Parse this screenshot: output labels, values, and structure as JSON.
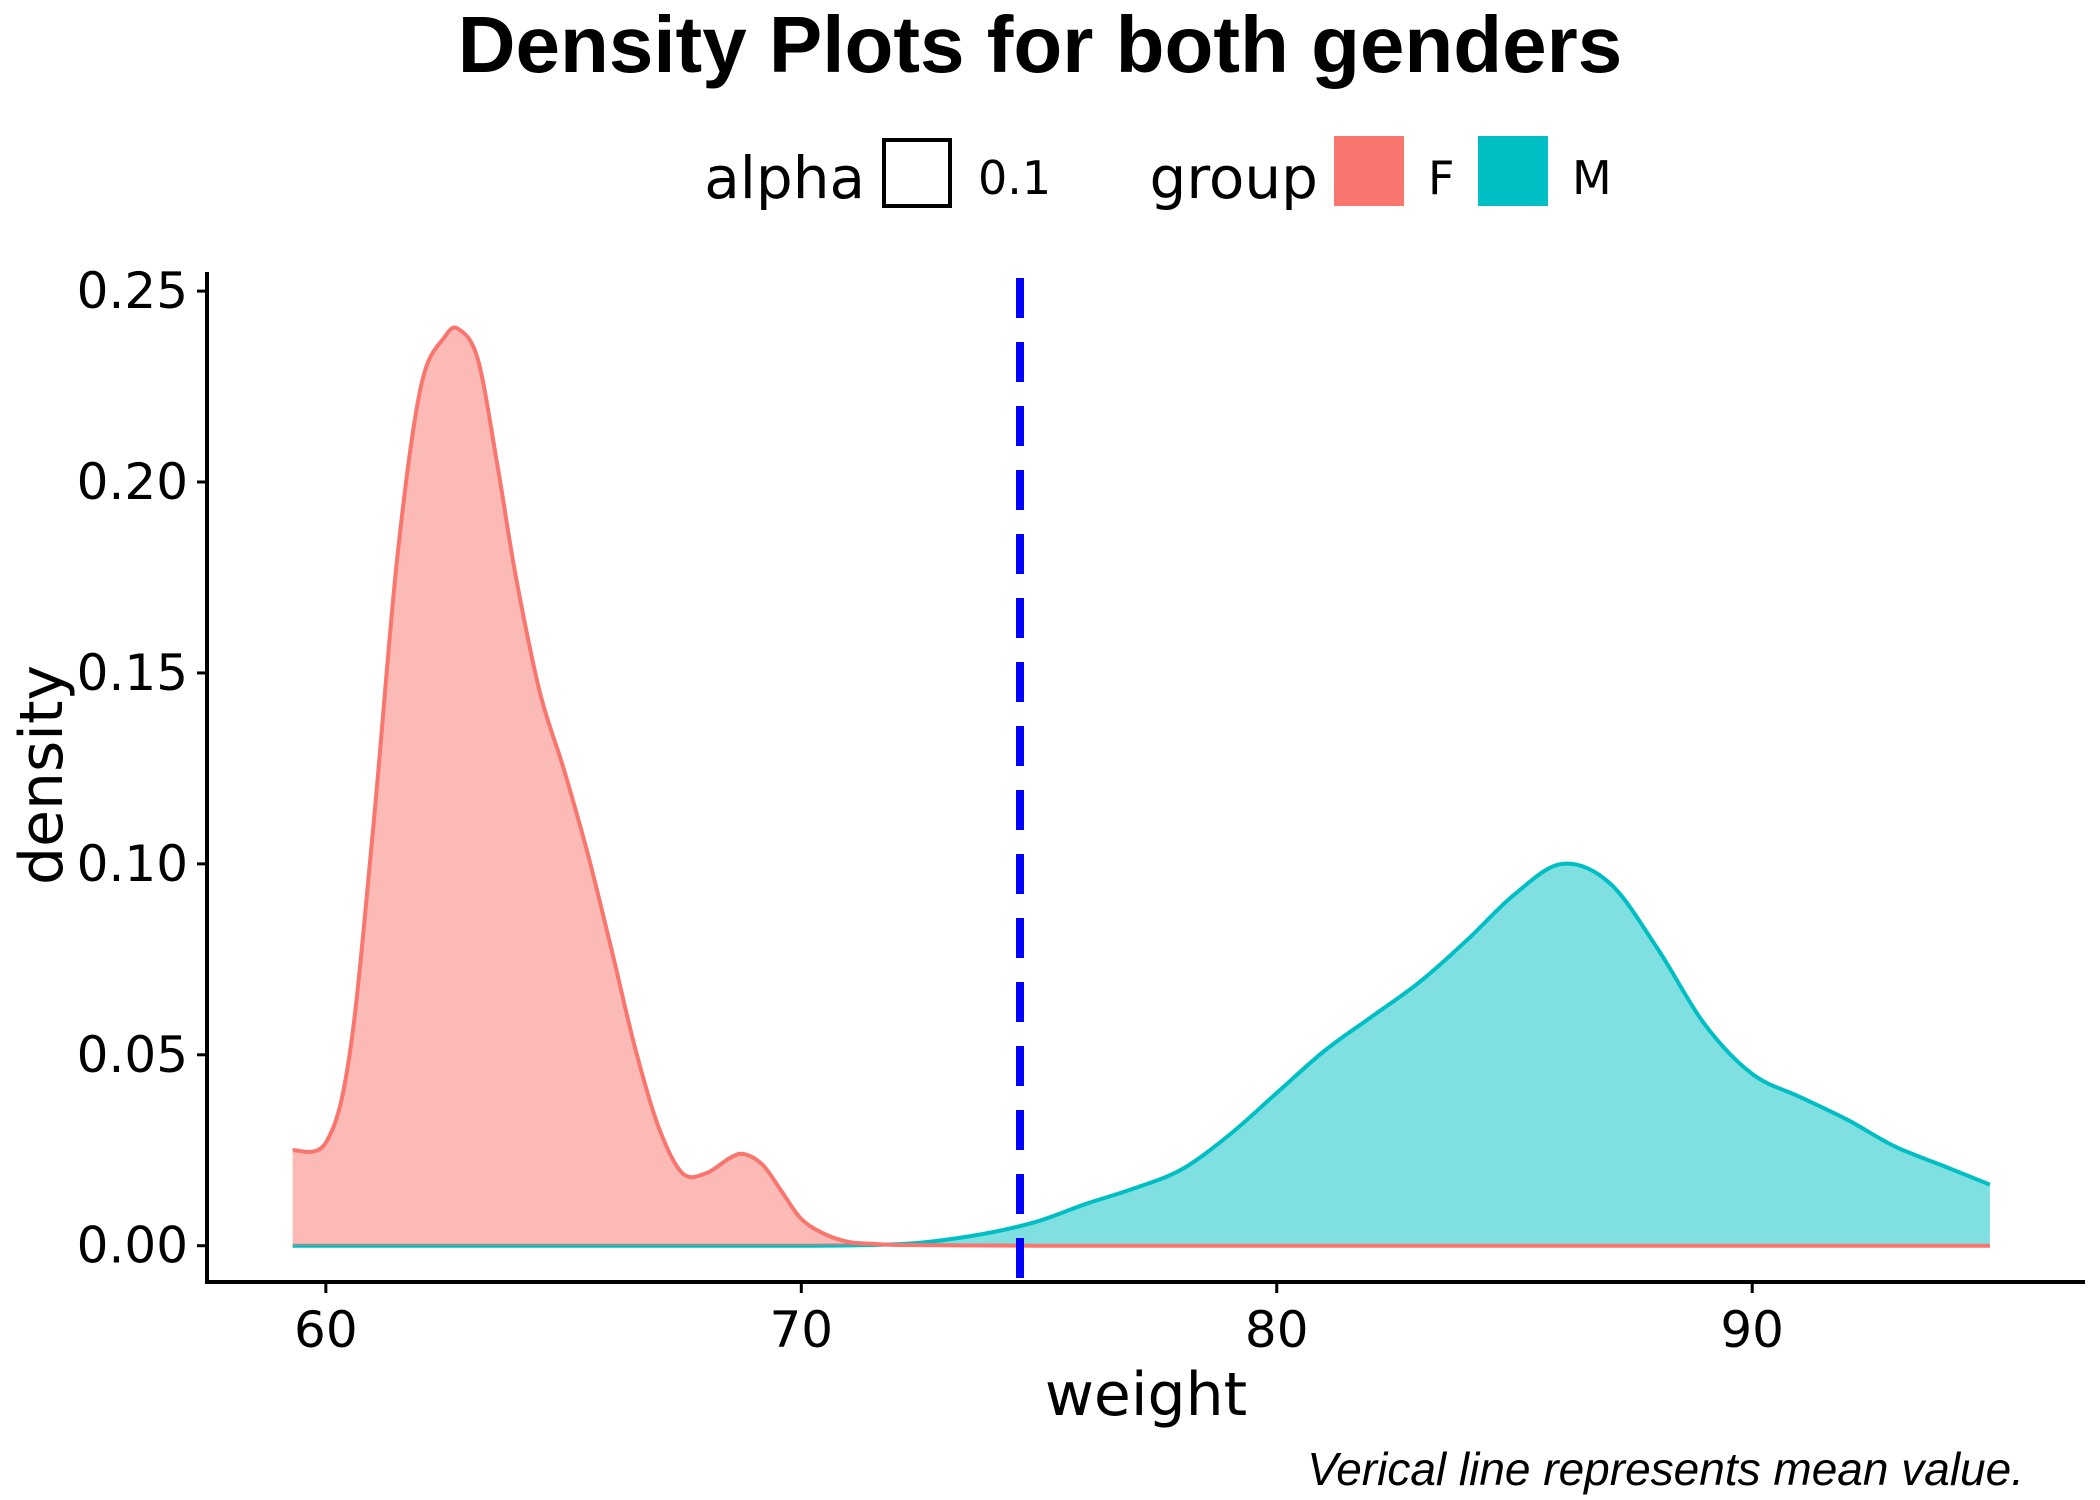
{
  "chart_data": {
    "type": "area",
    "title": "Density Plots for both genders",
    "xlabel": "weight",
    "ylabel": "density",
    "caption": "Verical line represents mean value.",
    "xlim": [
      57.5,
      97
    ],
    "ylim": [
      -0.0095,
      0.255
    ],
    "x_ticks": [
      60,
      70,
      80,
      90
    ],
    "x_tick_labels": [
      "60",
      "70",
      "80",
      "90"
    ],
    "y_ticks": [
      0,
      0.05,
      0.1,
      0.15,
      0.2,
      0.25
    ],
    "y_tick_labels": [
      "0.00",
      "0.05",
      "0.10",
      "0.15",
      "0.20",
      "0.25"
    ],
    "grid": false,
    "legend_position": "top",
    "legend": {
      "alpha": {
        "title": "alpha",
        "entries": [
          {
            "label": "0.1"
          }
        ]
      },
      "group": {
        "title": "group",
        "entries": [
          {
            "label": "F",
            "color": "#F8766D"
          },
          {
            "label": "M",
            "color": "#00BFC4"
          }
        ]
      }
    },
    "mean_line": {
      "x": 74.6,
      "color": "#0000FF",
      "style": "dashed"
    },
    "series": [
      {
        "name": "F",
        "color": "#F8766D",
        "x": [
          59.3,
          60.0,
          60.5,
          61.0,
          61.5,
          62.0,
          62.5,
          62.8,
          63.2,
          63.6,
          64.0,
          64.5,
          65.0,
          65.5,
          66.0,
          66.5,
          67.0,
          67.5,
          68.0,
          68.5,
          68.8,
          69.2,
          69.6,
          70.0,
          70.5,
          71.0,
          71.5,
          72.0,
          73.0,
          75.0,
          80.0,
          85.0,
          90.0,
          95.0
        ],
        "y": [
          0.025,
          0.027,
          0.05,
          0.11,
          0.18,
          0.225,
          0.238,
          0.24,
          0.232,
          0.205,
          0.175,
          0.145,
          0.125,
          0.103,
          0.078,
          0.052,
          0.031,
          0.019,
          0.019,
          0.023,
          0.024,
          0.021,
          0.014,
          0.007,
          0.003,
          0.001,
          0.0005,
          0.0002,
          0.0001,
          0.0,
          0.0,
          0.0,
          0.0,
          0.0
        ]
      },
      {
        "name": "M",
        "color": "#00BFC4",
        "x": [
          59.3,
          65.0,
          70.0,
          72.0,
          73.0,
          74.0,
          75.0,
          76.0,
          77.0,
          78.0,
          79.0,
          80.0,
          81.0,
          82.0,
          83.0,
          84.0,
          85.0,
          86.0,
          87.0,
          88.0,
          89.0,
          90.0,
          91.0,
          92.0,
          93.0,
          94.0,
          95.0
        ],
        "y": [
          0.0,
          0.0,
          0.0,
          0.0004,
          0.0015,
          0.0035,
          0.0065,
          0.011,
          0.015,
          0.02,
          0.029,
          0.04,
          0.051,
          0.06,
          0.069,
          0.08,
          0.092,
          0.1,
          0.095,
          0.078,
          0.058,
          0.045,
          0.039,
          0.033,
          0.026,
          0.021,
          0.016
        ]
      }
    ]
  }
}
